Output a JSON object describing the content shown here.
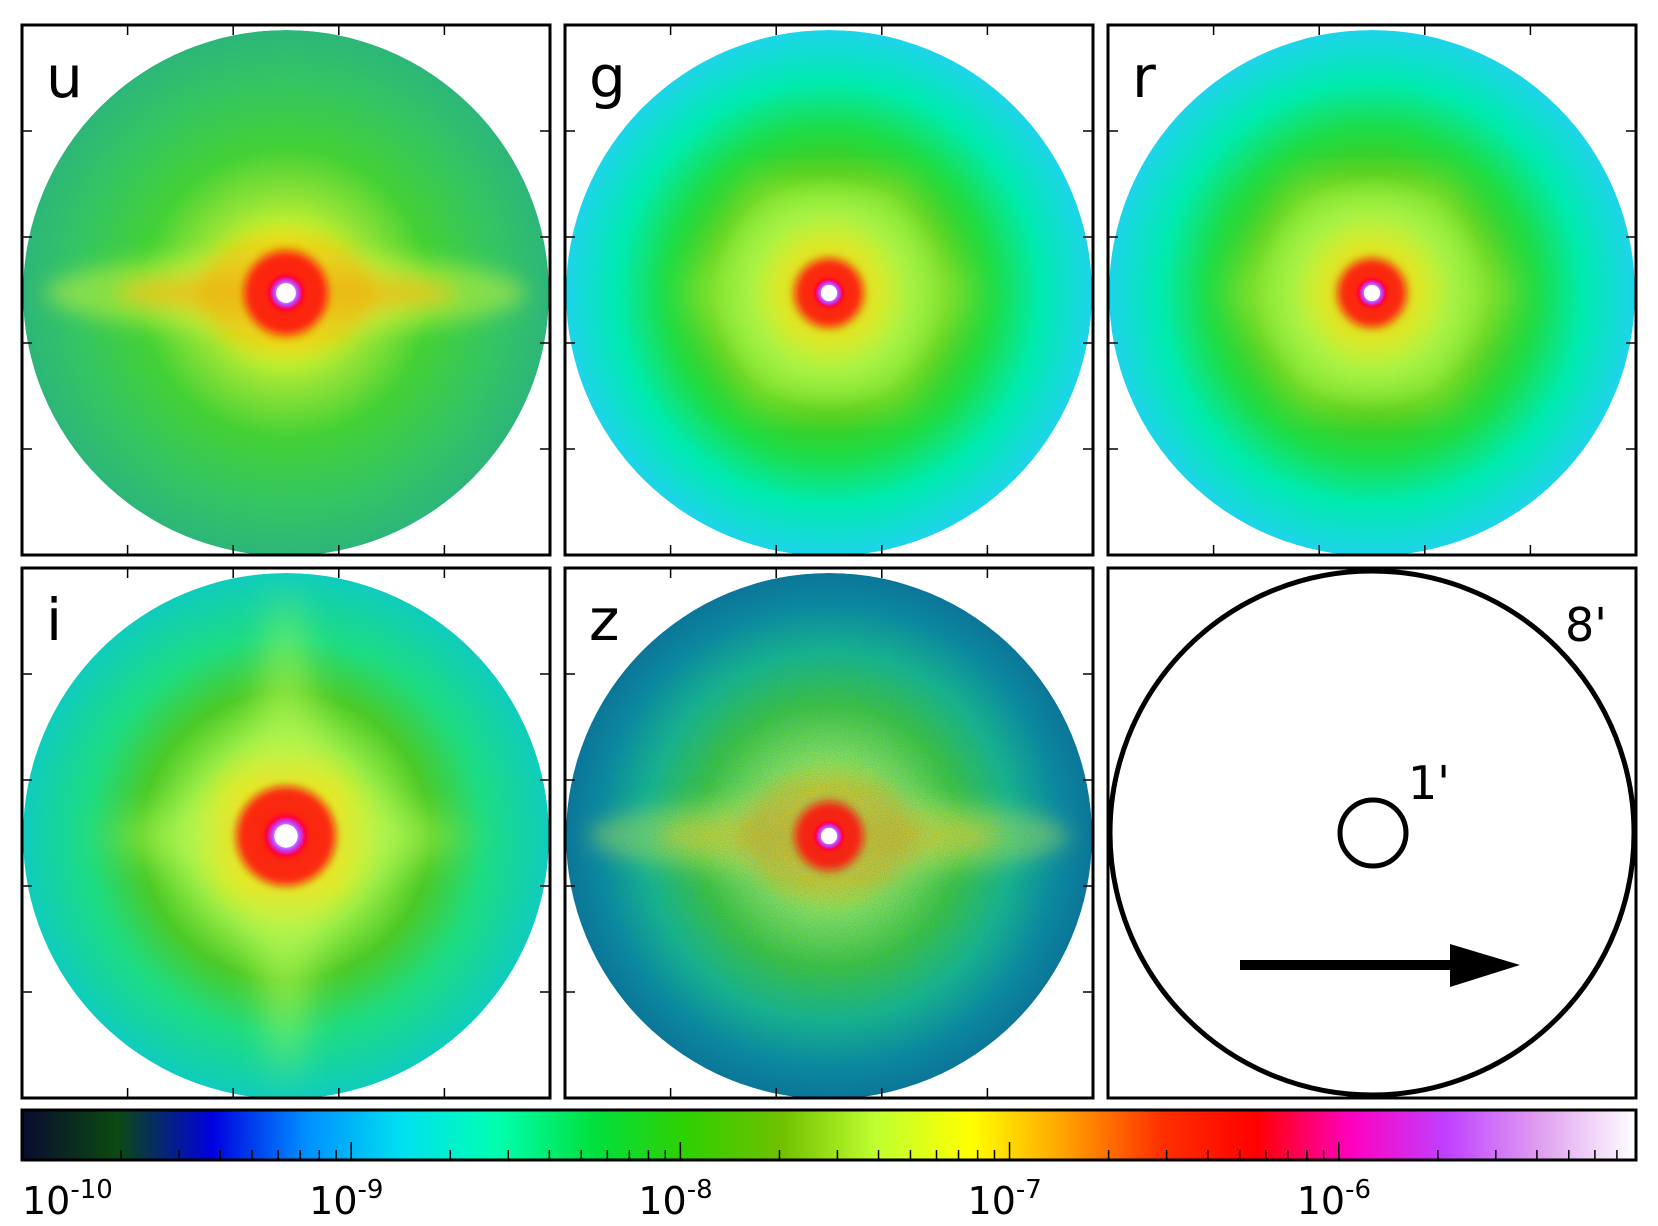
{
  "panels": [
    {
      "id": "u",
      "label": "u",
      "style": "disk"
    },
    {
      "id": "g",
      "label": "g",
      "style": "hex"
    },
    {
      "id": "r",
      "label": "r",
      "style": "hex"
    },
    {
      "id": "i",
      "label": "i",
      "style": "star"
    },
    {
      "id": "z",
      "label": "z",
      "style": "noisy"
    }
  ],
  "scale_panel": {
    "outer_label": "8'",
    "inner_label": "1'",
    "arrow": "right-arrow"
  },
  "colorbar": {
    "scale": "log",
    "min": 1e-10,
    "max": 8e-06,
    "ticks": [
      {
        "base": "10",
        "exp": "-10",
        "value": 1e-10
      },
      {
        "base": "10",
        "exp": "-9",
        "value": 1e-09
      },
      {
        "base": "10",
        "exp": "-8",
        "value": 1e-08
      },
      {
        "base": "10",
        "exp": "-7",
        "value": 1e-07
      },
      {
        "base": "10",
        "exp": "-6",
        "value": 1e-06
      }
    ],
    "colors": [
      "#0a0a30",
      "#0b4a10",
      "#0000e0",
      "#0090ff",
      "#00e0f0",
      "#00ffb0",
      "#00e040",
      "#30d000",
      "#70c000",
      "#c0ff30",
      "#ffff00",
      "#ffa000",
      "#ff3000",
      "#ff0000",
      "#ff00c0",
      "#c040ff",
      "#e0a0f0",
      "#ffffff"
    ]
  },
  "colors": {
    "frame": "#000000",
    "background": "#ffffff"
  }
}
